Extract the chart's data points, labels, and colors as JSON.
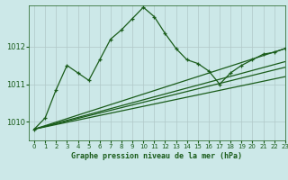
{
  "title": "Graphe pression niveau de la mer (hPa)",
  "bg_color": "#cce8e8",
  "grid_color": "#b0c8c8",
  "line_color": "#1a5c1a",
  "xlim": [
    -0.5,
    23
  ],
  "ylim": [
    1009.5,
    1013.1
  ],
  "yticks": [
    1010,
    1011,
    1012
  ],
  "xticks": [
    0,
    1,
    2,
    3,
    4,
    5,
    6,
    7,
    8,
    9,
    10,
    11,
    12,
    13,
    14,
    15,
    16,
    17,
    18,
    19,
    20,
    21,
    22,
    23
  ],
  "jagged": {
    "x": [
      0,
      1,
      2,
      3,
      4,
      5,
      6,
      7,
      8,
      9,
      10,
      11,
      12,
      13,
      14,
      15,
      16,
      17,
      18,
      19,
      20,
      21,
      22,
      23
    ],
    "y": [
      1009.8,
      1010.1,
      1010.85,
      1011.5,
      1011.3,
      1011.1,
      1011.65,
      1012.2,
      1012.45,
      1012.75,
      1013.05,
      1012.8,
      1012.35,
      1011.95,
      1011.65,
      1011.55,
      1011.35,
      1011.0,
      1011.3,
      1011.5,
      1011.65,
      1011.8,
      1011.85,
      1011.95
    ]
  },
  "line_top": {
    "x": [
      0,
      23
    ],
    "y": [
      1009.8,
      1011.95
    ]
  },
  "line_mid1": {
    "x": [
      0,
      23
    ],
    "y": [
      1009.8,
      1011.6
    ]
  },
  "line_mid2": {
    "x": [
      0,
      23
    ],
    "y": [
      1009.8,
      1011.45
    ]
  },
  "line_bot": {
    "x": [
      0,
      23
    ],
    "y": [
      1009.8,
      1011.2
    ]
  }
}
